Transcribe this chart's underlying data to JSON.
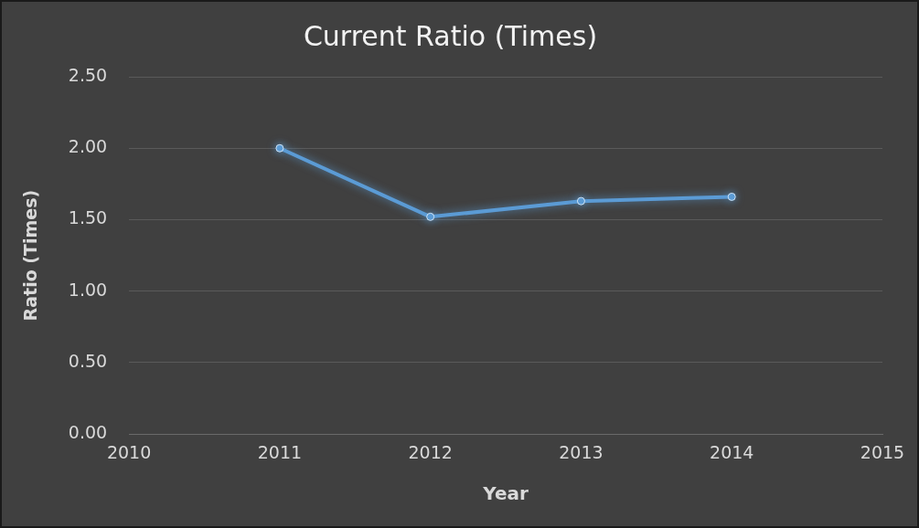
{
  "chart_data": {
    "type": "line",
    "title": "Current Ratio (Times)",
    "xlabel": "Year",
    "ylabel": "Ratio (Times)",
    "x": [
      2011,
      2012,
      2013,
      2014
    ],
    "series": [
      {
        "color": "#5b9bd5",
        "values": [
          2.0,
          1.52,
          1.63,
          1.66
        ]
      }
    ],
    "xlim": [
      2010,
      2015
    ],
    "xticks": [
      2010,
      2011,
      2012,
      2013,
      2014,
      2015
    ],
    "ylim": [
      0,
      2.5
    ],
    "yticks": [
      {
        "value": 0,
        "label": "0.00"
      },
      {
        "value": 0.5,
        "label": "0.50"
      },
      {
        "value": 1,
        "label": "1.00"
      },
      {
        "value": 1.5,
        "label": "1.50"
      },
      {
        "value": 2,
        "label": "2.00"
      },
      {
        "value": 2.5,
        "label": "2.50"
      }
    ],
    "grid": "y",
    "legend": false,
    "marker": "circle",
    "line_style": "solid"
  }
}
